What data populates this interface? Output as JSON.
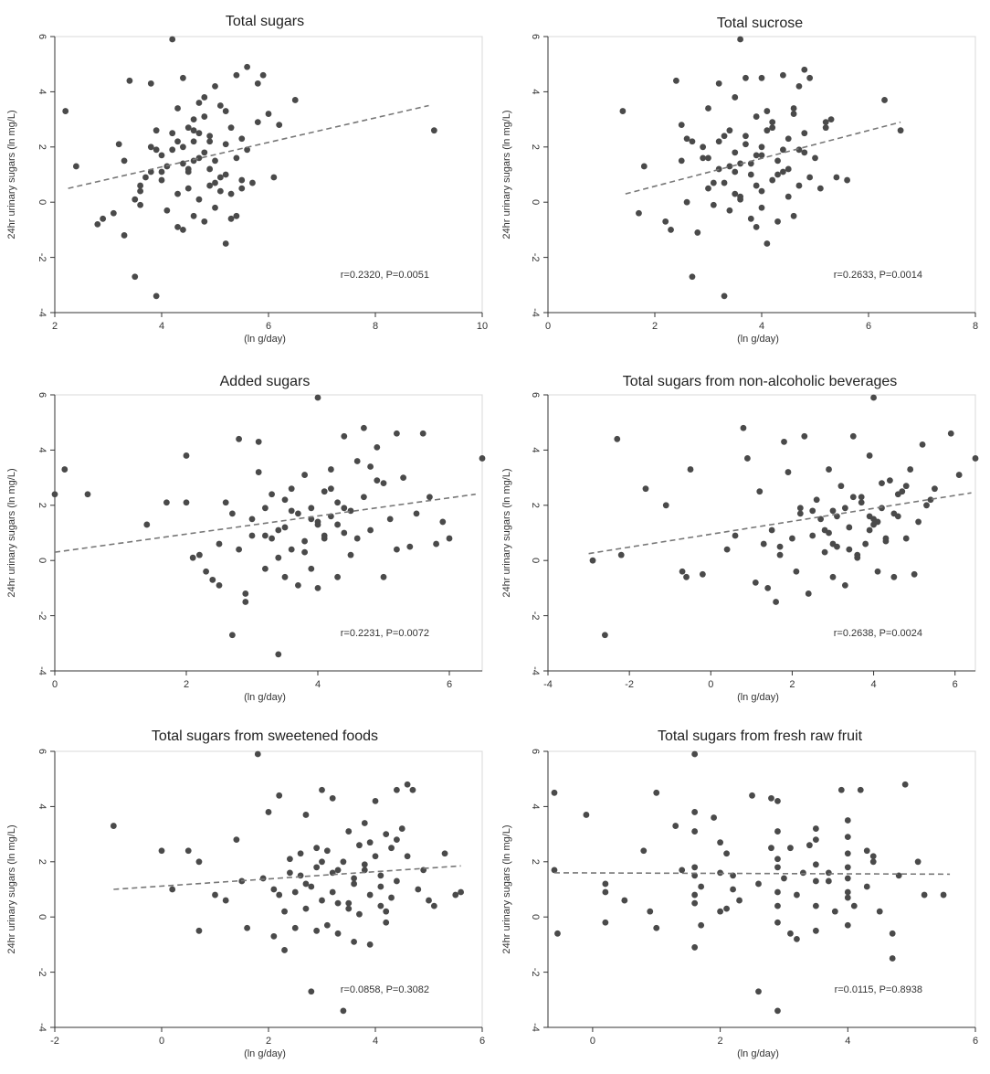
{
  "chart_data": [
    {
      "type": "scatter",
      "title": "Total sugars",
      "xlabel": "(ln g/day)",
      "ylabel": "24hr urinary sugars (ln mg/L)",
      "xlim": [
        2,
        10
      ],
      "xticks": [
        2,
        4,
        6,
        8,
        10
      ],
      "ylim": [
        -4,
        6
      ],
      "yticks": [
        -4,
        -2,
        0,
        2,
        4,
        6
      ],
      "annotation": "r=0.2320, P=0.0051",
      "fit": {
        "x": [
          2.25,
          9.0
        ],
        "y": [
          0.5,
          3.5
        ]
      },
      "x": [
        2.2,
        2.4,
        2.8,
        2.9,
        3.1,
        3.3,
        3.3,
        3.4,
        3.5,
        3.6,
        3.6,
        3.7,
        3.8,
        3.8,
        3.9,
        3.9,
        4.0,
        4.0,
        4.1,
        4.2,
        4.2,
        4.3,
        4.3,
        4.4,
        4.4,
        4.4,
        4.5,
        4.5,
        4.5,
        4.6,
        4.6,
        4.6,
        4.7,
        4.7,
        4.7,
        4.8,
        4.8,
        4.8,
        4.9,
        4.9,
        5.0,
        5.0,
        5.0,
        5.1,
        5.1,
        5.2,
        5.2,
        5.2,
        5.3,
        5.3,
        5.4,
        5.4,
        5.5,
        5.5,
        5.6,
        5.6,
        5.7,
        5.8,
        5.9,
        6.0,
        6.1,
        6.2,
        6.5,
        9.1,
        3.8,
        4.1,
        4.3,
        4.6,
        4.9,
        5.2,
        5.5,
        3.5,
        4.0,
        4.4,
        4.8,
        5.1,
        5.4,
        3.9,
        4.2,
        4.5,
        4.7,
        5.0,
        5.3,
        3.2,
        3.6,
        4.3,
        4.6,
        4.9,
        5.8
      ],
      "y": [
        3.3,
        1.3,
        -0.8,
        -0.6,
        -0.4,
        -1.2,
        1.5,
        4.4,
        -2.7,
        0.4,
        -0.1,
        0.9,
        1.1,
        4.3,
        -3.4,
        2.6,
        1.7,
        0.8,
        -0.3,
        5.9,
        1.9,
        0.3,
        2.2,
        1.4,
        4.5,
        -1.0,
        2.7,
        1.2,
        0.5,
        2.2,
        -0.5,
        3.0,
        1.6,
        2.5,
        0.1,
        3.1,
        -0.7,
        1.8,
        0.6,
        2.4,
        4.2,
        -0.2,
        1.5,
        3.5,
        0.9,
        2.1,
        -1.5,
        1.0,
        2.7,
        0.3,
        4.6,
        -0.5,
        2.3,
        0.8,
        4.9,
        1.9,
        0.7,
        2.9,
        4.6,
        3.2,
        0.9,
        2.8,
        3.7,
        2.6,
        2.0,
        1.3,
        -0.9,
        2.6,
        1.2,
        3.3,
        0.5,
        0.1,
        1.1,
        2.0,
        3.8,
        0.4,
        1.6,
        1.9,
        2.5,
        1.1,
        3.6,
        0.7,
        -0.6,
        2.1,
        0.6,
        3.4,
        1.5,
        2.2,
        4.3
      ]
    },
    {
      "type": "scatter",
      "title": "Total sucrose",
      "xlabel": "(ln g/day)",
      "ylabel": "24hr urinary sugars (ln mg/L)",
      "xlim": [
        0,
        8
      ],
      "xticks": [
        0,
        2,
        4,
        6,
        8
      ],
      "ylim": [
        -4,
        6
      ],
      "yticks": [
        -4,
        -2,
        0,
        2,
        4,
        6
      ],
      "annotation": "r=0.2633, P=0.0014",
      "fit": {
        "x": [
          1.45,
          6.6
        ],
        "y": [
          0.3,
          2.9
        ]
      },
      "x": [
        1.4,
        1.7,
        1.8,
        2.2,
        2.3,
        2.4,
        2.5,
        2.5,
        2.6,
        2.7,
        2.7,
        2.8,
        2.9,
        3.0,
        3.0,
        3.1,
        3.2,
        3.2,
        3.3,
        3.3,
        3.4,
        3.4,
        3.5,
        3.5,
        3.6,
        3.6,
        3.6,
        3.7,
        3.7,
        3.8,
        3.8,
        3.9,
        3.9,
        4.0,
        4.0,
        4.0,
        4.1,
        4.1,
        4.2,
        4.2,
        4.3,
        4.3,
        4.4,
        4.4,
        4.5,
        4.5,
        4.6,
        4.6,
        4.7,
        4.7,
        4.8,
        4.8,
        4.9,
        4.9,
        5.0,
        5.1,
        5.2,
        5.3,
        5.4,
        5.6,
        6.3,
        6.6,
        2.9,
        3.2,
        3.5,
        3.8,
        4.1,
        4.4,
        4.7,
        3.1,
        3.4,
        3.7,
        4.0,
        4.3,
        4.6,
        3.3,
        3.6,
        3.9,
        4.2,
        4.5,
        2.6,
        3.0,
        3.9,
        4.8,
        5.2,
        3.5,
        4.0
      ],
      "y": [
        3.3,
        -0.4,
        1.3,
        -0.7,
        -1.0,
        4.4,
        2.8,
        1.5,
        0.0,
        2.2,
        -2.7,
        -1.1,
        2.0,
        0.5,
        3.4,
        -0.1,
        4.3,
        1.2,
        -3.4,
        0.7,
        2.6,
        -0.3,
        1.8,
        3.8,
        5.9,
        0.2,
        1.4,
        4.5,
        2.4,
        -0.6,
        1.0,
        3.1,
        -0.9,
        2.0,
        0.4,
        1.7,
        -1.5,
        3.3,
        2.7,
        0.8,
        1.5,
        -0.7,
        4.6,
        1.1,
        0.2,
        2.3,
        3.2,
        -0.5,
        1.9,
        0.6,
        4.8,
        2.5,
        4.5,
        0.9,
        1.6,
        0.5,
        2.7,
        3.0,
        0.9,
        0.8,
        3.7,
        2.6,
        1.6,
        2.2,
        0.3,
        1.4,
        2.6,
        1.9,
        4.2,
        0.7,
        1.3,
        2.1,
        -0.2,
        1.0,
        3.4,
        2.4,
        0.1,
        1.7,
        2.9,
        1.2,
        2.3,
        1.6,
        0.6,
        1.8,
        2.9,
        1.1,
        4.5
      ]
    },
    {
      "type": "scatter",
      "title": "Added sugars",
      "xlabel": "(ln g/day)",
      "ylabel": "24hr urinary sugars (ln mg/L)",
      "xlim": [
        0,
        6.5
      ],
      "xticks": [
        0,
        2,
        4,
        6
      ],
      "ylim": [
        -4,
        6
      ],
      "yticks": [
        -4,
        -2,
        0,
        2,
        4,
        6
      ],
      "annotation": "r=0.2231, P=0.0072",
      "fit": {
        "x": [
          0.0,
          6.4
        ],
        "y": [
          0.3,
          2.4
        ]
      },
      "x": [
        0.0,
        0.15,
        0.5,
        1.4,
        1.7,
        2.0,
        2.0,
        2.1,
        2.2,
        2.3,
        2.4,
        2.5,
        2.5,
        2.6,
        2.7,
        2.7,
        2.8,
        2.8,
        2.9,
        2.9,
        3.0,
        3.0,
        3.1,
        3.1,
        3.2,
        3.2,
        3.3,
        3.3,
        3.4,
        3.4,
        3.5,
        3.5,
        3.6,
        3.6,
        3.7,
        3.7,
        3.8,
        3.8,
        3.9,
        3.9,
        4.0,
        4.0,
        4.0,
        4.1,
        4.1,
        4.2,
        4.2,
        4.3,
        4.3,
        4.4,
        4.4,
        4.5,
        4.5,
        4.6,
        4.7,
        4.7,
        4.8,
        4.9,
        5.0,
        5.0,
        5.1,
        5.2,
        5.3,
        5.4,
        5.5,
        5.6,
        5.7,
        5.8,
        5.9,
        6.0,
        6.5,
        3.4,
        3.6,
        3.8,
        4.0,
        4.2,
        4.4,
        4.6,
        4.8,
        3.2,
        3.5,
        3.9,
        4.3,
        4.9,
        5.2,
        4.1
      ],
      "y": [
        2.4,
        3.3,
        2.4,
        1.3,
        2.1,
        3.8,
        2.1,
        0.1,
        0.2,
        -0.4,
        -0.7,
        -0.9,
        0.6,
        2.1,
        -2.7,
        1.7,
        0.4,
        4.4,
        -1.2,
        -1.5,
        1.5,
        0.9,
        4.3,
        3.2,
        -0.3,
        1.9,
        0.8,
        2.4,
        -3.4,
        0.1,
        -0.6,
        1.2,
        2.6,
        0.4,
        1.7,
        -0.9,
        3.1,
        0.7,
        1.9,
        -0.3,
        5.9,
        1.3,
        -1.0,
        2.5,
        0.8,
        1.6,
        3.3,
        -0.6,
        2.1,
        1.0,
        4.5,
        1.8,
        0.2,
        3.6,
        4.8,
        2.3,
        1.1,
        4.1,
        -0.6,
        2.8,
        1.5,
        4.6,
        3.0,
        0.5,
        1.7,
        4.6,
        2.3,
        0.6,
        1.4,
        0.8,
        3.7,
        1.1,
        1.8,
        0.3,
        1.4,
        2.6,
        1.9,
        0.8,
        3.4,
        0.9,
        2.2,
        1.5,
        1.3,
        2.9,
        0.4,
        0.9
      ]
    },
    {
      "type": "scatter",
      "title": "Total sugars from non-alcoholic beverages",
      "xlabel": "(ln g/day)",
      "ylabel": "24hr urinary sugars (ln mg/L)",
      "xlim": [
        -4,
        6.5
      ],
      "xticks": [
        -4,
        -2,
        0,
        2,
        4,
        6
      ],
      "ylim": [
        -4,
        6
      ],
      "yticks": [
        -4,
        -2,
        0,
        2,
        4,
        6
      ],
      "annotation": "r=0.2638, P=0.0024",
      "fit": {
        "x": [
          -3.0,
          6.4
        ],
        "y": [
          0.25,
          2.45
        ]
      },
      "x": [
        -2.9,
        -2.6,
        -2.3,
        -2.2,
        -1.6,
        -1.1,
        -0.7,
        -0.6,
        -0.5,
        -0.2,
        0.4,
        0.6,
        0.8,
        0.9,
        1.1,
        1.2,
        1.3,
        1.4,
        1.5,
        1.6,
        1.7,
        1.8,
        1.9,
        2.0,
        2.1,
        2.2,
        2.3,
        2.4,
        2.5,
        2.6,
        2.7,
        2.8,
        2.9,
        3.0,
        3.0,
        3.1,
        3.2,
        3.3,
        3.4,
        3.5,
        3.6,
        3.7,
        3.8,
        3.9,
        4.0,
        4.0,
        4.1,
        4.2,
        4.3,
        4.4,
        4.5,
        4.6,
        4.7,
        4.8,
        4.9,
        5.0,
        5.1,
        5.2,
        5.3,
        5.5,
        5.9,
        6.1,
        6.5,
        2.5,
        2.8,
        3.1,
        3.4,
        3.7,
        4.0,
        4.3,
        4.6,
        2.9,
        3.3,
        3.6,
        3.9,
        4.2,
        4.5,
        3.0,
        3.5,
        4.1,
        1.7,
        2.2,
        4.8,
        5.4,
        3.9
      ],
      "y": [
        0.0,
        -2.7,
        4.4,
        0.2,
        2.6,
        2.0,
        -0.4,
        -0.6,
        3.3,
        -0.5,
        0.4,
        0.9,
        4.8,
        3.7,
        -0.8,
        2.5,
        0.6,
        -1.0,
        1.1,
        -1.5,
        0.2,
        4.3,
        3.2,
        0.8,
        -0.4,
        1.7,
        4.5,
        -1.2,
        0.9,
        2.2,
        1.5,
        0.3,
        3.3,
        -0.6,
        1.8,
        0.5,
        2.7,
        -0.9,
        1.2,
        4.5,
        0.1,
        2.3,
        0.6,
        3.8,
        5.9,
        1.5,
        -0.4,
        1.9,
        0.8,
        2.9,
        -0.6,
        1.6,
        2.5,
        0.8,
        3.3,
        -0.5,
        1.4,
        4.2,
        2.0,
        2.6,
        4.6,
        3.1,
        3.7,
        1.8,
        1.1,
        1.6,
        0.4,
        2.1,
        1.3,
        0.7,
        2.4,
        1.0,
        1.9,
        0.2,
        1.1,
        2.8,
        1.7,
        0.6,
        2.3,
        1.4,
        0.5,
        1.9,
        2.7,
        2.2,
        1.6
      ]
    },
    {
      "type": "scatter",
      "title": "Total sugars from sweetened foods",
      "xlabel": "(ln g/day)",
      "ylabel": "24hr urinary sugars (ln mg/L)",
      "xlim": [
        -2,
        6
      ],
      "xticks": [
        -2,
        0,
        2,
        4,
        6
      ],
      "ylim": [
        -4,
        6
      ],
      "yticks": [
        -4,
        -2,
        0,
        2,
        4,
        6
      ],
      "annotation": "r=0.0858, P=0.3082",
      "fit": {
        "x": [
          -0.9,
          5.6
        ],
        "y": [
          1.0,
          1.85
        ]
      },
      "x": [
        -0.9,
        0.0,
        0.2,
        0.5,
        0.7,
        0.7,
        1.0,
        1.2,
        1.4,
        1.5,
        1.6,
        1.8,
        2.0,
        2.1,
        2.1,
        2.2,
        2.3,
        2.3,
        2.4,
        2.5,
        2.6,
        2.6,
        2.7,
        2.7,
        2.8,
        2.8,
        2.9,
        2.9,
        3.0,
        3.0,
        3.1,
        3.1,
        3.2,
        3.2,
        3.3,
        3.3,
        3.4,
        3.4,
        3.5,
        3.5,
        3.6,
        3.6,
        3.7,
        3.7,
        3.8,
        3.8,
        3.9,
        3.9,
        4.0,
        4.0,
        4.1,
        4.1,
        4.2,
        4.2,
        4.3,
        4.3,
        4.4,
        4.4,
        4.5,
        4.6,
        4.7,
        4.8,
        5.0,
        5.1,
        5.3,
        5.5,
        5.6,
        2.4,
        2.7,
        3.0,
        3.3,
        3.6,
        3.9,
        4.2,
        2.5,
        2.9,
        3.2,
        3.5,
        3.8,
        4.1,
        4.4,
        1.9,
        2.2,
        4.6,
        4.9
      ],
      "y": [
        3.3,
        2.4,
        1.0,
        2.4,
        -0.5,
        2.0,
        0.8,
        0.6,
        2.8,
        1.3,
        -0.4,
        5.9,
        3.8,
        -0.7,
        1.0,
        4.4,
        -1.2,
        0.2,
        2.1,
        -0.4,
        1.5,
        2.3,
        0.3,
        3.7,
        -2.7,
        1.1,
        -0.5,
        1.8,
        0.6,
        4.6,
        -0.3,
        2.4,
        0.9,
        4.3,
        1.7,
        -0.6,
        -3.4,
        2.0,
        0.5,
        3.1,
        1.2,
        -0.9,
        2.6,
        0.1,
        1.7,
        3.4,
        -1.0,
        0.8,
        2.2,
        4.2,
        0.4,
        1.5,
        3.0,
        -0.2,
        2.5,
        0.7,
        4.6,
        1.3,
        3.2,
        4.8,
        4.6,
        1.0,
        0.6,
        0.4,
        2.3,
        0.8,
        0.9,
        1.6,
        1.2,
        2.0,
        0.5,
        1.4,
        2.7,
        0.2,
        0.9,
        2.5,
        1.6,
        0.3,
        1.9,
        1.1,
        2.8,
        1.4,
        0.8,
        2.2,
        1.7
      ]
    },
    {
      "type": "scatter",
      "title": "Total sugars from fresh raw fruit",
      "xlabel": "(ln g/day)",
      "ylabel": "24hr urinary sugars (ln mg/L)",
      "xlim": [
        -0.7,
        6
      ],
      "xticks": [
        0,
        2,
        4,
        6
      ],
      "ylim": [
        -4,
        6
      ],
      "yticks": [
        -4,
        -2,
        0,
        2,
        4,
        6
      ],
      "annotation": "r=0.0115, P=0.8938",
      "fit": {
        "x": [
          -0.6,
          5.6
        ],
        "y": [
          1.6,
          1.55
        ]
      },
      "x": [
        -0.6,
        -0.6,
        -0.55,
        -0.1,
        0.2,
        0.2,
        0.2,
        0.5,
        0.8,
        0.9,
        1.0,
        1.0,
        1.3,
        1.4,
        1.6,
        1.6,
        1.6,
        1.6,
        1.6,
        1.6,
        1.7,
        1.7,
        1.9,
        2.0,
        2.0,
        2.0,
        2.1,
        2.2,
        2.3,
        2.5,
        2.6,
        2.8,
        2.8,
        2.9,
        2.9,
        2.9,
        2.9,
        2.9,
        2.9,
        3.0,
        3.1,
        3.1,
        3.2,
        3.3,
        3.4,
        3.5,
        3.5,
        3.5,
        3.5,
        3.5,
        3.7,
        3.8,
        3.9,
        4.0,
        4.0,
        4.0,
        4.0,
        4.0,
        4.0,
        4.1,
        4.2,
        4.3,
        4.4,
        4.5,
        4.7,
        4.7,
        4.8,
        4.9,
        5.1,
        5.2,
        5.5,
        1.6,
        2.2,
        2.9,
        3.5,
        4.0,
        4.4,
        1.6,
        2.9,
        4.0,
        3.2,
        3.7,
        2.1,
        2.6,
        4.3
      ],
      "y": [
        4.5,
        1.7,
        -0.6,
        3.7,
        1.2,
        0.9,
        -0.2,
        0.6,
        2.4,
        0.2,
        -0.4,
        4.5,
        3.3,
        1.7,
        5.9,
        3.1,
        1.5,
        0.8,
        -1.1,
        3.8,
        1.1,
        -0.3,
        3.6,
        2.7,
        0.2,
        1.6,
        2.3,
        1.0,
        0.6,
        4.4,
        -2.7,
        2.5,
        4.3,
        3.1,
        1.8,
        0.9,
        -0.2,
        -3.4,
        4.2,
        1.4,
        2.5,
        -0.6,
        0.8,
        1.6,
        2.6,
        3.2,
        1.9,
        0.4,
        -0.5,
        2.8,
        1.3,
        0.2,
        4.6,
        3.5,
        1.4,
        0.7,
        -0.3,
        2.3,
        2.9,
        0.4,
        4.6,
        1.1,
        2.0,
        0.2,
        -0.6,
        -1.5,
        1.5,
        4.8,
        2.0,
        0.8,
        0.8,
        1.8,
        1.5,
        0.4,
        1.3,
        1.8,
        2.2,
        0.5,
        2.1,
        0.9,
        -0.8,
        1.6,
        0.3,
        1.2,
        2.4
      ]
    }
  ]
}
